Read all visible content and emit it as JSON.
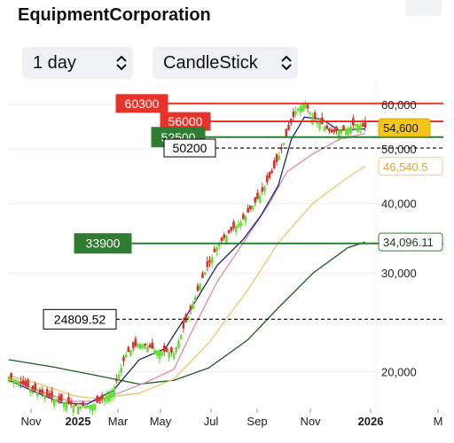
{
  "header": {
    "title": "EquipmentCorporation"
  },
  "controls": {
    "interval": {
      "value": "1 day",
      "icon": "chevron-updown-icon"
    },
    "chart_type": {
      "value": "CandleStick",
      "icon": "chevron-updown-icon"
    }
  },
  "chart_data": {
    "type": "candlestick",
    "y_scale": "log",
    "ylim": [
      17000,
      66000
    ],
    "x_ticks": [
      "Nov",
      "2025",
      "Mar",
      "May",
      "Jul",
      "Sep",
      "Nov",
      "2026",
      "M"
    ],
    "y_ticks": [
      {
        "value": 60000,
        "label": "60,000"
      },
      {
        "value": 50000,
        "label": "50,000"
      },
      {
        "value": 40000,
        "label": "40,000"
      },
      {
        "value": 30000,
        "label": "30,000"
      },
      {
        "value": 20000,
        "label": "20,000"
      }
    ],
    "price_badges": [
      {
        "value": 54600,
        "label": "54,600",
        "color": "#f5c518"
      },
      {
        "value": 46540.5,
        "label": "46,540.5",
        "color": "#f3c77a"
      },
      {
        "value": 34096.11,
        "label": "34,096.11",
        "color": "#2e7d32"
      }
    ],
    "horizontal_lines": [
      {
        "value": 60300,
        "label": "60300",
        "color": "#e8332a",
        "style": "solid"
      },
      {
        "value": 56000,
        "label": "56000",
        "color": "#e8332a",
        "style": "solid"
      },
      {
        "value": 52500,
        "label": "52500",
        "color": "#2e7d32",
        "style": "solid"
      },
      {
        "value": 50200,
        "label": "50200",
        "color": "#000000",
        "style": "dashed"
      },
      {
        "value": 33900,
        "label": "33900",
        "color": "#2e7d32",
        "style": "solid"
      },
      {
        "value": 24809.52,
        "label": "24809.52",
        "color": "#000000",
        "style": "dashed"
      }
    ],
    "colors": {
      "up": "#66dd33",
      "down": "#d0342c",
      "ma_short": "#1a237e",
      "ma_mid": "#e08ab0",
      "ma_long": "#f0c36a",
      "ma_longest": "#1b5e20"
    },
    "moving_averages": [
      {
        "key": "ma_longest",
        "points": [
          [
            0,
            21000
          ],
          [
            0.1,
            20400
          ],
          [
            0.2,
            19700
          ],
          [
            0.3,
            19000
          ],
          [
            0.38,
            19300
          ],
          [
            0.46,
            20300
          ],
          [
            0.55,
            22800
          ],
          [
            0.62,
            26000
          ],
          [
            0.7,
            30000
          ],
          [
            0.78,
            33300
          ],
          [
            0.82,
            34096
          ]
        ]
      },
      {
        "key": "ma_long",
        "points": [
          [
            0,
            19700
          ],
          [
            0.08,
            18900
          ],
          [
            0.15,
            18100
          ],
          [
            0.2,
            17900
          ],
          [
            0.3,
            18300
          ],
          [
            0.38,
            19400
          ],
          [
            0.46,
            22500
          ],
          [
            0.55,
            28000
          ],
          [
            0.62,
            34000
          ],
          [
            0.7,
            40000
          ],
          [
            0.78,
            44500
          ],
          [
            0.82,
            46540
          ]
        ]
      },
      {
        "key": "ma_mid",
        "points": [
          [
            0,
            19500
          ],
          [
            0.06,
            18600
          ],
          [
            0.14,
            17700
          ],
          [
            0.2,
            17700
          ],
          [
            0.26,
            18400
          ],
          [
            0.32,
            19200
          ],
          [
            0.38,
            20200
          ],
          [
            0.42,
            23500
          ],
          [
            0.48,
            29000
          ],
          [
            0.54,
            34000
          ],
          [
            0.6,
            40000
          ],
          [
            0.64,
            45500
          ],
          [
            0.7,
            49000
          ],
          [
            0.76,
            52000
          ],
          [
            0.82,
            53300
          ]
        ]
      },
      {
        "key": "ma_short",
        "points": [
          [
            0,
            19300
          ],
          [
            0.06,
            18400
          ],
          [
            0.12,
            17600
          ],
          [
            0.18,
            17500
          ],
          [
            0.24,
            18500
          ],
          [
            0.3,
            21000
          ],
          [
            0.36,
            22000
          ],
          [
            0.42,
            26000
          ],
          [
            0.48,
            31000
          ],
          [
            0.54,
            34500
          ],
          [
            0.58,
            38000
          ],
          [
            0.62,
            43000
          ],
          [
            0.65,
            52000
          ],
          [
            0.68,
            57000
          ],
          [
            0.72,
            56500
          ],
          [
            0.76,
            54000
          ],
          [
            0.82,
            54300
          ]
        ]
      }
    ],
    "candles_anchor": [
      [
        0,
        19600
      ],
      [
        0.04,
        18800
      ],
      [
        0.08,
        18200
      ],
      [
        0.12,
        17700
      ],
      [
        0.16,
        17300
      ],
      [
        0.2,
        17500
      ],
      [
        0.24,
        18500
      ],
      [
        0.27,
        21500
      ],
      [
        0.3,
        22500
      ],
      [
        0.34,
        21800
      ],
      [
        0.38,
        21600
      ],
      [
        0.42,
        26000
      ],
      [
        0.45,
        30000
      ],
      [
        0.48,
        33500
      ],
      [
        0.5,
        35000
      ],
      [
        0.54,
        37500
      ],
      [
        0.58,
        41500
      ],
      [
        0.61,
        46000
      ],
      [
        0.64,
        53000
      ],
      [
        0.66,
        58500
      ],
      [
        0.68,
        60500
      ],
      [
        0.7,
        57000
      ],
      [
        0.72,
        55500
      ],
      [
        0.74,
        53500
      ],
      [
        0.77,
        54000
      ],
      [
        0.8,
        55500
      ],
      [
        0.82,
        54600
      ]
    ]
  }
}
